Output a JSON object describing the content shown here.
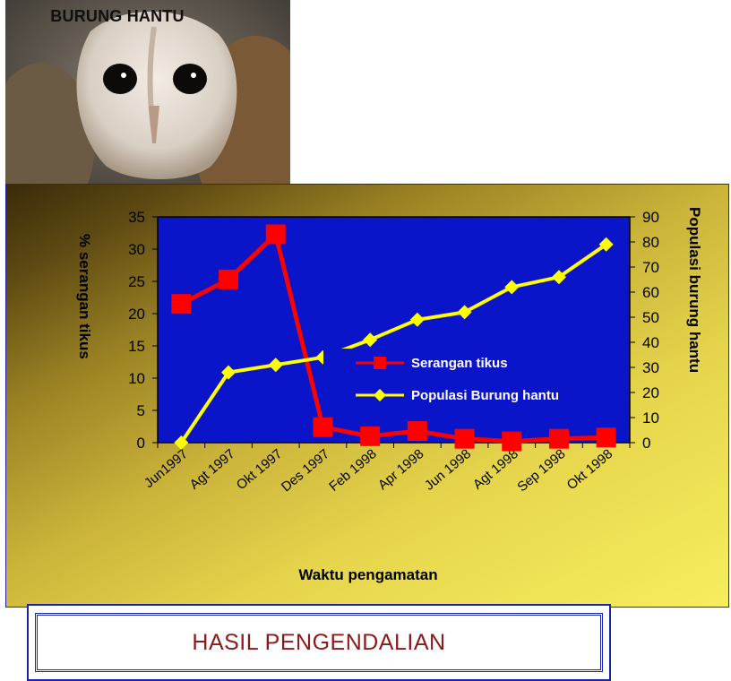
{
  "photo": {
    "title": "BURUNG HANTU"
  },
  "result_title": "HASIL PENGENDALIAN",
  "chart_data": {
    "type": "line",
    "title": "",
    "xlabel": "Waktu pengamatan",
    "ylabel": "% serangan tikus",
    "y2label": "Populasi burung hantu",
    "categories": [
      "Jun1997",
      "Agt 1997",
      "Okt 1997",
      "Des 1997",
      "Feb 1998",
      "Apr 1998",
      "Jun 1998",
      "Agt 1998",
      "Sep 1998",
      "Okt 1998"
    ],
    "ylim": [
      0,
      35
    ],
    "yticks": [
      0,
      5,
      10,
      15,
      20,
      25,
      30,
      35
    ],
    "y2lim": [
      0,
      90
    ],
    "y2ticks": [
      0,
      10,
      20,
      30,
      40,
      50,
      60,
      70,
      80,
      90
    ],
    "legend_position": "inside-right",
    "series": [
      {
        "name": "Serangan tikus",
        "axis": "left",
        "color": "#ff0000",
        "marker": "square",
        "values": [
          21.5,
          25.3,
          32.3,
          2.4,
          1.0,
          1.8,
          0.6,
          0.2,
          0.6,
          0.8
        ]
      },
      {
        "name": "Populasi Burung hantu",
        "axis": "right",
        "color": "#ffff00",
        "marker": "diamond",
        "values": [
          0,
          28,
          31,
          34,
          41,
          49,
          52,
          62,
          66,
          79
        ]
      }
    ],
    "plot_background": "#0a14c8",
    "grid": false
  }
}
